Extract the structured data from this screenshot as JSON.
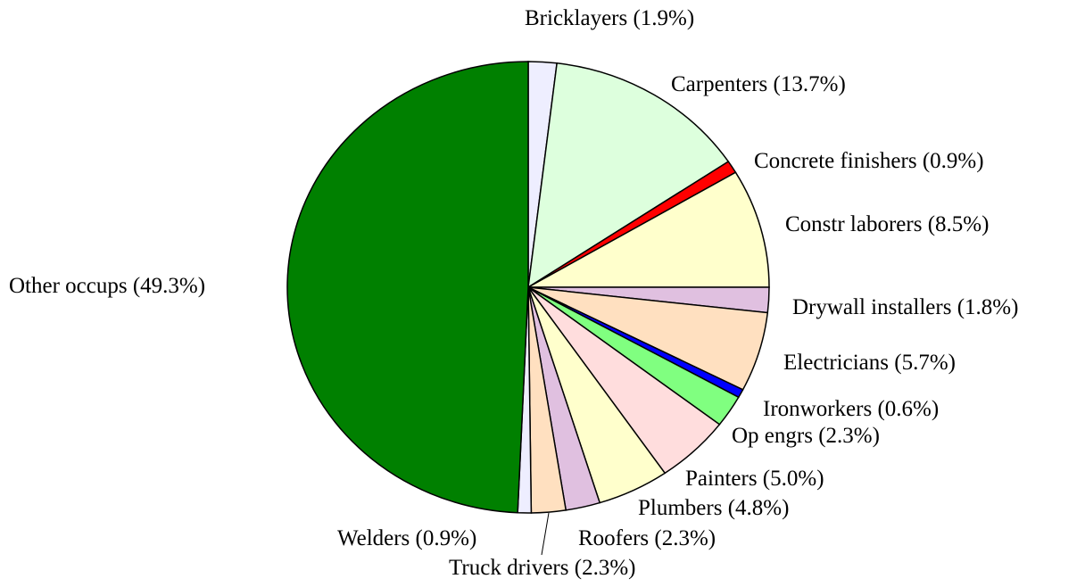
{
  "chart_data": {
    "type": "pie",
    "categories": [
      "Bricklayers",
      "Carpenters",
      "Concrete finishers",
      "Constr laborers",
      "Drywall installers",
      "Electricians",
      "Ironworkers",
      "Op engrs",
      "Painters",
      "Plumbers",
      "Roofers",
      "Truck drivers",
      "Welders",
      "Other occups"
    ],
    "values": [
      1.9,
      13.7,
      0.9,
      8.5,
      1.8,
      5.7,
      0.6,
      2.3,
      5.0,
      4.8,
      2.3,
      2.3,
      0.9,
      49.3
    ],
    "value_labels": [
      "(1.9%)",
      "(13.7%)",
      "(0.9%)",
      "(8.5%)",
      "(1.8%)",
      "(5.7%)",
      "(0.6%)",
      "(2.3%)",
      "(5.0%)",
      "(4.8%)",
      "(2.3%)",
      "(2.3%)",
      "(0.9%)",
      "(49.3%)"
    ],
    "colors": [
      "#eeeeff",
      "#ddffdd",
      "#ff0000",
      "#ffffcc",
      "#e0c0e0",
      "#ffe0c0",
      "#0000ff",
      "#80ff80",
      "#ffdddd",
      "#ffffcc",
      "#e0c0e0",
      "#ffe0c0",
      "#eeeeff",
      "#008000"
    ]
  }
}
